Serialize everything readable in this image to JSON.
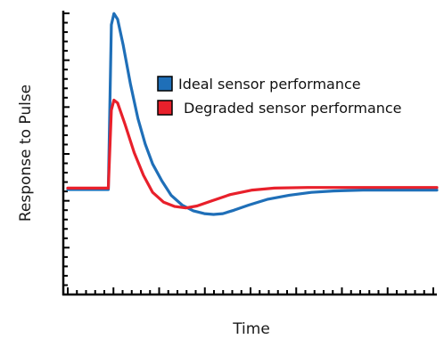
{
  "chart_data": {
    "type": "line",
    "title": "",
    "xlabel": "Time",
    "ylabel": "Response to Pulse",
    "grid": false,
    "tick_labels": false,
    "legend_position": "right-middle",
    "xlim": [
      0,
      10
    ],
    "ylim": [
      0,
      10
    ],
    "x_minor_ticks": 41,
    "y_minor_ticks": 31,
    "series": [
      {
        "name": "Ideal sensor performance",
        "color": "#1f6fb8",
        "points": [
          [
            0,
            3.7
          ],
          [
            1.1,
            3.7
          ],
          [
            1.1,
            3.7
          ],
          [
            1.18,
            9.5
          ],
          [
            1.25,
            9.9
          ],
          [
            1.35,
            9.7
          ],
          [
            1.5,
            8.8
          ],
          [
            1.7,
            7.4
          ],
          [
            1.9,
            6.2
          ],
          [
            2.1,
            5.3
          ],
          [
            2.3,
            4.6
          ],
          [
            2.55,
            4.0
          ],
          [
            2.8,
            3.5
          ],
          [
            3.1,
            3.15
          ],
          [
            3.4,
            2.95
          ],
          [
            3.7,
            2.85
          ],
          [
            3.95,
            2.82
          ],
          [
            4.2,
            2.85
          ],
          [
            4.5,
            2.97
          ],
          [
            4.9,
            3.15
          ],
          [
            5.4,
            3.35
          ],
          [
            6.0,
            3.5
          ],
          [
            6.6,
            3.6
          ],
          [
            7.2,
            3.65
          ],
          [
            8.0,
            3.68
          ],
          [
            9.0,
            3.68
          ],
          [
            10,
            3.68
          ]
        ]
      },
      {
        "name": "Degraded sensor performance",
        "color": "#e8202b",
        "points": [
          [
            0,
            3.75
          ],
          [
            1.1,
            3.75
          ],
          [
            1.1,
            3.75
          ],
          [
            1.18,
            6.5
          ],
          [
            1.25,
            6.85
          ],
          [
            1.35,
            6.75
          ],
          [
            1.55,
            6.0
          ],
          [
            1.8,
            5.0
          ],
          [
            2.05,
            4.2
          ],
          [
            2.3,
            3.6
          ],
          [
            2.6,
            3.25
          ],
          [
            2.9,
            3.1
          ],
          [
            3.2,
            3.05
          ],
          [
            3.5,
            3.12
          ],
          [
            3.9,
            3.3
          ],
          [
            4.4,
            3.52
          ],
          [
            5.0,
            3.68
          ],
          [
            5.6,
            3.75
          ],
          [
            6.5,
            3.77
          ],
          [
            8.0,
            3.77
          ],
          [
            10,
            3.77
          ]
        ]
      }
    ]
  }
}
